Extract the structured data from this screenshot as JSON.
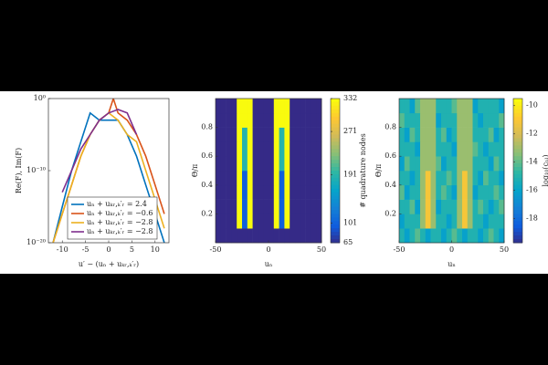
{
  "chart_data": [
    {
      "type": "line",
      "xlabel": "u′ − (uₙ + uₖᵣ,ₖ′ᵣ)",
      "ylabel": "Re(F), Im(F)",
      "log_scale_y": true,
      "xlim": [
        -13,
        13
      ],
      "xticks": [
        -10,
        -5,
        0,
        5,
        10
      ],
      "ylim": [
        1e-20,
        1
      ],
      "yticks": [
        {
          "value": 1e-20,
          "label": "10⁻²⁰"
        },
        {
          "value": 1e-10,
          "label": "10⁻¹⁰"
        },
        {
          "value": 1,
          "label": "10⁰"
        }
      ],
      "legend_position": "lower center",
      "series": [
        {
          "name": "uₙ + uₖᵣ,ₖ′ᵣ = 2.4",
          "color": "#0072bd",
          "x": [
            -12,
            -10,
            -8,
            -6,
            -4,
            -2,
            0,
            2,
            4,
            6,
            8,
            10,
            12
          ],
          "values": [
            1e-20,
            1e-15,
            1e-10,
            1e-06,
            0.01,
            0.001,
            0.001,
            0.001,
            1e-05,
            1e-08,
            1e-12,
            1e-16,
            1e-20
          ]
        },
        {
          "name": "uₙ + uₖᵣ,ₖ′ᵣ = −0.6",
          "color": "#d95319",
          "x": [
            -12,
            -10,
            -8,
            -6,
            -4,
            -2,
            0,
            1,
            2,
            4,
            6,
            8,
            10,
            12
          ],
          "values": [
            1e-20,
            1e-16,
            1e-12,
            1e-08,
            1e-05,
            0.001,
            0.01,
            1,
            0.01,
            0.001,
            1e-05,
            1e-08,
            1e-12,
            1e-16
          ]
        },
        {
          "name": "uₙ + uₖᵣ,ₖ′ᵣ = −2.8",
          "color": "#edb120",
          "x": [
            -12,
            -10,
            -8,
            -6,
            -4,
            -2,
            0,
            2,
            4,
            6,
            8,
            10,
            12
          ],
          "values": [
            1e-20,
            1e-16,
            1e-12,
            1e-08,
            1e-05,
            0.001,
            0.01,
            0.001,
            1e-05,
            1e-06,
            1e-10,
            1e-14,
            1e-18
          ]
        },
        {
          "name": "uₙ + uₖᵣ,ₖ′ᵣ = −2.8",
          "color": "#7e2f8e",
          "x": [
            -10,
            -8,
            -6,
            -4,
            -2,
            0,
            2,
            4,
            6
          ],
          "values": [
            1e-13,
            1e-10,
            1e-07,
            1e-05,
            0.001,
            0.01,
            0.03,
            0.01,
            1e-05
          ]
        }
      ]
    },
    {
      "type": "heatmap",
      "xlabel": "uₙ",
      "ylabel": "Θ/π",
      "xlim": [
        -50,
        50
      ],
      "xticks": [
        -50,
        0,
        50
      ],
      "ylim": [
        0,
        1
      ],
      "yticks": [
        0.2,
        0.4,
        0.6,
        0.8
      ],
      "xbins": [
        -50,
        -45,
        -40,
        -35,
        -30,
        -25,
        -20,
        -15,
        -10,
        -5,
        0,
        5,
        10,
        15,
        20,
        25,
        30,
        35,
        40,
        45,
        50
      ],
      "ybins": [
        0,
        0.1,
        0.2,
        0.3,
        0.4,
        0.5,
        0.6,
        0.7,
        0.8,
        0.9,
        1
      ],
      "colorbar": {
        "label": "# quadrature nodes",
        "clim": [
          65,
          332
        ],
        "ticks": [
          65,
          101,
          191,
          271,
          332
        ]
      },
      "z": [
        [
          65,
          65,
          65,
          65,
          65,
          65,
          65,
          65,
          65,
          65,
          65,
          65,
          65,
          65,
          65,
          65,
          65,
          65,
          65,
          65
        ],
        [
          65,
          65,
          65,
          65,
          332,
          101,
          332,
          65,
          65,
          65,
          65,
          332,
          101,
          332,
          65,
          65,
          65,
          65,
          65,
          65
        ],
        [
          65,
          65,
          65,
          65,
          332,
          101,
          332,
          65,
          65,
          65,
          65,
          332,
          101,
          332,
          65,
          65,
          65,
          65,
          65,
          65
        ],
        [
          65,
          65,
          65,
          65,
          332,
          101,
          332,
          65,
          65,
          65,
          65,
          332,
          101,
          332,
          65,
          65,
          65,
          65,
          65,
          65
        ],
        [
          65,
          65,
          65,
          65,
          332,
          101,
          332,
          65,
          65,
          65,
          65,
          332,
          101,
          332,
          65,
          65,
          65,
          65,
          65,
          65
        ],
        [
          65,
          65,
          65,
          65,
          332,
          191,
          332,
          65,
          65,
          65,
          65,
          332,
          191,
          332,
          65,
          65,
          65,
          65,
          65,
          65
        ],
        [
          65,
          65,
          65,
          65,
          332,
          191,
          332,
          65,
          65,
          65,
          65,
          332,
          191,
          332,
          65,
          65,
          65,
          65,
          65,
          65
        ],
        [
          65,
          65,
          65,
          65,
          332,
          191,
          332,
          65,
          65,
          65,
          65,
          332,
          191,
          332,
          65,
          65,
          65,
          65,
          65,
          65
        ],
        [
          65,
          65,
          65,
          65,
          332,
          332,
          332,
          65,
          65,
          65,
          65,
          332,
          332,
          332,
          65,
          65,
          65,
          65,
          65,
          65
        ],
        [
          65,
          65,
          65,
          65,
          332,
          332,
          332,
          65,
          65,
          65,
          65,
          332,
          332,
          332,
          65,
          65,
          65,
          65,
          65,
          65
        ]
      ]
    },
    {
      "type": "heatmap",
      "xlabel": "uₙ",
      "ylabel": "Θ/π",
      "xlim": [
        -50,
        50
      ],
      "xticks": [
        -50,
        0,
        50
      ],
      "ylim": [
        0,
        1
      ],
      "yticks": [
        0.2,
        0.4,
        0.6,
        0.8
      ],
      "xbins": [
        -50,
        -45,
        -40,
        -35,
        -30,
        -25,
        -20,
        -15,
        -10,
        -5,
        0,
        5,
        10,
        15,
        20,
        25,
        30,
        35,
        40,
        45,
        50
      ],
      "ybins": [
        0,
        0.1,
        0.2,
        0.3,
        0.4,
        0.5,
        0.6,
        0.7,
        0.8,
        0.9,
        1
      ],
      "colorbar": {
        "label": "log₁₀(cₙₗ)",
        "clim": [
          -19.7,
          -9.5
        ],
        "ticks": [
          -18,
          -16,
          -14,
          -12,
          -10
        ]
      },
      "z": [
        [
          -15,
          -16,
          -15,
          -14,
          -15,
          -16,
          -15,
          -15,
          -16,
          -15,
          -14,
          -15,
          -16,
          -15,
          -15,
          -16,
          -15,
          -14,
          -15,
          -16
        ],
        [
          -16,
          -15,
          -15,
          -15,
          -13,
          -11,
          -13,
          -15,
          -15,
          -16,
          -15,
          -13,
          -11,
          -13,
          -15,
          -15,
          -16,
          -15,
          -15,
          -15
        ],
        [
          -15,
          -15,
          -14,
          -16,
          -13,
          -11,
          -13,
          -16,
          -15,
          -15,
          -15,
          -13,
          -11,
          -13,
          -15,
          -14,
          -15,
          -16,
          -15,
          -14
        ],
        [
          -14,
          -16,
          -15,
          -15,
          -13,
          -11,
          -13,
          -15,
          -14,
          -15,
          -16,
          -13,
          -11,
          -13,
          -16,
          -15,
          -15,
          -15,
          -14,
          -15
        ],
        [
          -15,
          -15,
          -16,
          -15,
          -13,
          -11,
          -13,
          -15,
          -15,
          -14,
          -15,
          -13,
          -11,
          -13,
          -15,
          -16,
          -14,
          -15,
          -15,
          -16
        ],
        [
          -16,
          -14,
          -15,
          -15,
          -13,
          -13,
          -13,
          -14,
          -16,
          -15,
          -15,
          -13,
          -13,
          -13,
          -15,
          -15,
          -15,
          -16,
          -14,
          -15
        ],
        [
          -15,
          -15,
          -15,
          -16,
          -13,
          -13,
          -13,
          -15,
          -15,
          -15,
          -16,
          -13,
          -13,
          -13,
          -14,
          -15,
          -16,
          -15,
          -15,
          -15
        ],
        [
          -15,
          -16,
          -14,
          -15,
          -13,
          -13,
          -13,
          -15,
          -14,
          -16,
          -15,
          -13,
          -13,
          -13,
          -15,
          -15,
          -15,
          -14,
          -16,
          -15
        ],
        [
          -14,
          -15,
          -15,
          -15,
          -13,
          -13,
          -13,
          -16,
          -15,
          -15,
          -15,
          -13,
          -13,
          -13,
          -15,
          -16,
          -15,
          -15,
          -15,
          -14
        ],
        [
          -15,
          -15,
          -16,
          -14,
          -13,
          -13,
          -13,
          -15,
          -15,
          -15,
          -14,
          -13,
          -13,
          -13,
          -16,
          -15,
          -15,
          -15,
          -15,
          -16
        ]
      ]
    }
  ]
}
